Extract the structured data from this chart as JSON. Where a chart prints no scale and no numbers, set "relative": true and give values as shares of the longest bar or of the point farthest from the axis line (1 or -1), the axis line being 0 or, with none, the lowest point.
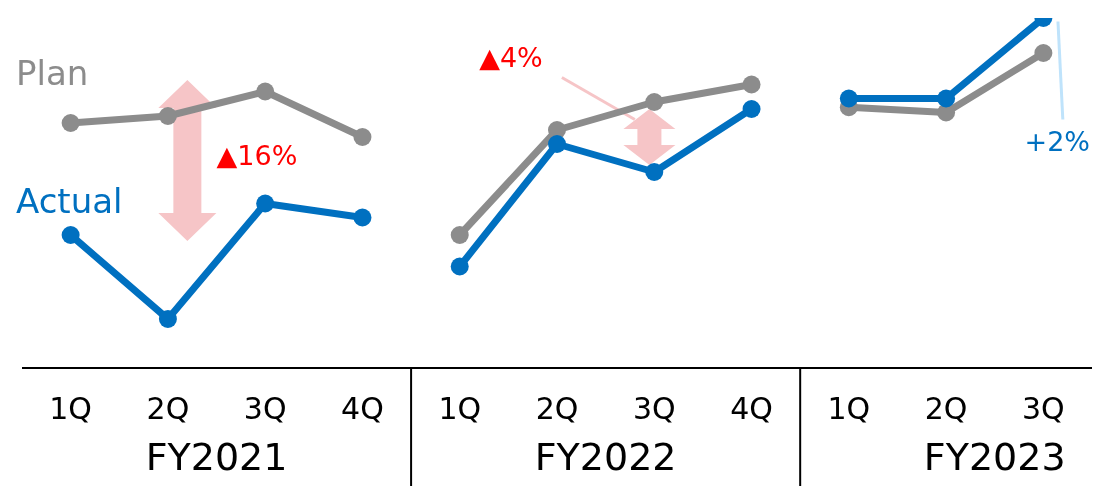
{
  "chart_data": {
    "type": "line",
    "relative": true,
    "legend": false,
    "marker": "circle",
    "line_style": "solid",
    "categories": [
      "1Q",
      "2Q",
      "3Q",
      "4Q",
      "1Q",
      "2Q",
      "3Q",
      "4Q",
      "1Q",
      "2Q",
      "3Q"
    ],
    "series": [
      {
        "name": "Plan",
        "color": "#8c8c8c",
        "values": [
          0.7,
          0.72,
          0.79,
          0.66,
          null,
          null,
          null,
          null,
          null,
          null,
          null
        ]
      },
      {
        "name": "Actual",
        "color": "#0070c0",
        "values": [
          0.38,
          0.14,
          0.47,
          0.43,
          null,
          null,
          null,
          null,
          null,
          null,
          null
        ]
      },
      {
        "color": "#8c8c8c",
        "values": [
          null,
          null,
          null,
          null,
          0.38,
          0.68,
          0.76,
          0.81,
          null,
          null,
          null
        ]
      },
      {
        "color": "#0070c0",
        "values": [
          null,
          null,
          null,
          null,
          0.29,
          0.64,
          0.56,
          0.74,
          null,
          null,
          null
        ]
      },
      {
        "color": "#8c8c8c",
        "values": [
          null,
          null,
          null,
          null,
          null,
          null,
          null,
          null,
          0.745,
          0.73,
          0.9
        ]
      },
      {
        "color": "#0070c0",
        "values": [
          null,
          null,
          null,
          null,
          null,
          null,
          null,
          null,
          0.77,
          0.77,
          1
        ]
      }
    ],
    "annotations": [
      "FY2021",
      "FY2022",
      "FY2023",
      "▲16%",
      "▲4%",
      "+2%"
    ]
  }
}
